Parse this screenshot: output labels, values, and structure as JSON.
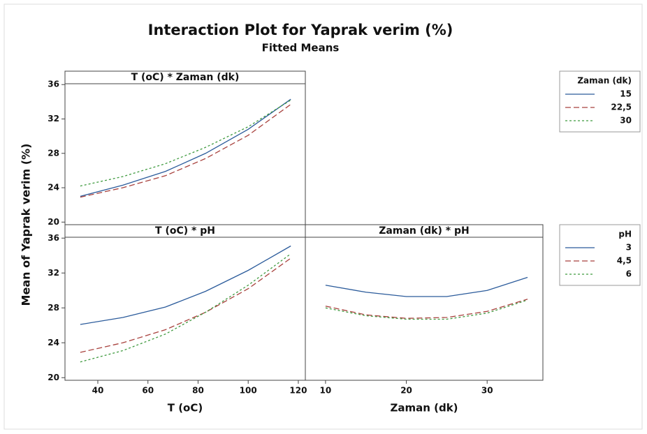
{
  "figure": {
    "title": "Interaction Plot for Yaprak verim (%)",
    "subtitle": "Fitted Means",
    "ylabel": "Mean of Yaprak verim (%)"
  },
  "chart_data": [
    {
      "type": "line",
      "title": "T (oC) * Zaman (dk)",
      "legend_title": "Zaman (dk)",
      "x": [
        33,
        50,
        67,
        83,
        100,
        117
      ],
      "xlim": [
        26.9,
        122.8
      ],
      "ylim": [
        19.7,
        36.1
      ],
      "yticks": [
        20,
        24,
        28,
        32,
        36
      ],
      "series": [
        {
          "name": "15",
          "color": "#2b5b9b",
          "dash": "solid",
          "values": [
            23.0,
            24.3,
            25.9,
            28.0,
            30.8,
            34.3
          ]
        },
        {
          "name": "22,5",
          "color": "#a8413d",
          "dash": "dashed",
          "values": [
            22.9,
            24.0,
            25.4,
            27.4,
            30.1,
            33.7
          ]
        },
        {
          "name": "30",
          "color": "#3f9a3f",
          "dash": "dotted",
          "values": [
            24.2,
            25.3,
            26.8,
            28.7,
            31.1,
            34.2
          ]
        }
      ]
    },
    {
      "type": "line",
      "title": "T (oC) * pH",
      "legend_title": "pH",
      "xlabel": "T (oC)",
      "x": [
        33,
        50,
        67,
        83,
        100,
        117
      ],
      "xlim": [
        26.9,
        122.8
      ],
      "xticks": [
        40,
        60,
        80,
        100,
        120
      ],
      "ylim": [
        19.7,
        36.1
      ],
      "yticks": [
        20,
        24,
        28,
        32,
        36
      ],
      "series": [
        {
          "name": "3",
          "color": "#2b5b9b",
          "dash": "solid",
          "values": [
            26.1,
            26.9,
            28.1,
            29.9,
            32.3,
            35.1
          ]
        },
        {
          "name": "4,5",
          "color": "#a8413d",
          "dash": "dashed",
          "values": [
            22.9,
            24.0,
            25.5,
            27.5,
            30.2,
            33.7
          ]
        },
        {
          "name": "6",
          "color": "#3f9a3f",
          "dash": "dotted",
          "values": [
            21.8,
            23.1,
            25.0,
            27.5,
            30.6,
            34.2
          ]
        }
      ]
    },
    {
      "type": "line",
      "title": "Zaman (dk) * pH",
      "xlabel": "Zaman (dk)",
      "x": [
        10,
        15,
        20,
        25,
        30,
        35
      ],
      "xlim": [
        7.5,
        36.9
      ],
      "xticks": [
        10,
        20,
        30
      ],
      "ylim": [
        19.7,
        36.1
      ],
      "series": [
        {
          "color": "#2b5b9b",
          "dash": "solid",
          "values": [
            30.6,
            29.8,
            29.3,
            29.3,
            30.0,
            31.5
          ]
        },
        {
          "color": "#a8413d",
          "dash": "dashed",
          "values": [
            28.2,
            27.2,
            26.8,
            26.9,
            27.6,
            29.0
          ]
        },
        {
          "color": "#3f9a3f",
          "dash": "dotted",
          "values": [
            28.0,
            27.1,
            26.7,
            26.7,
            27.4,
            28.9
          ]
        }
      ]
    }
  ]
}
